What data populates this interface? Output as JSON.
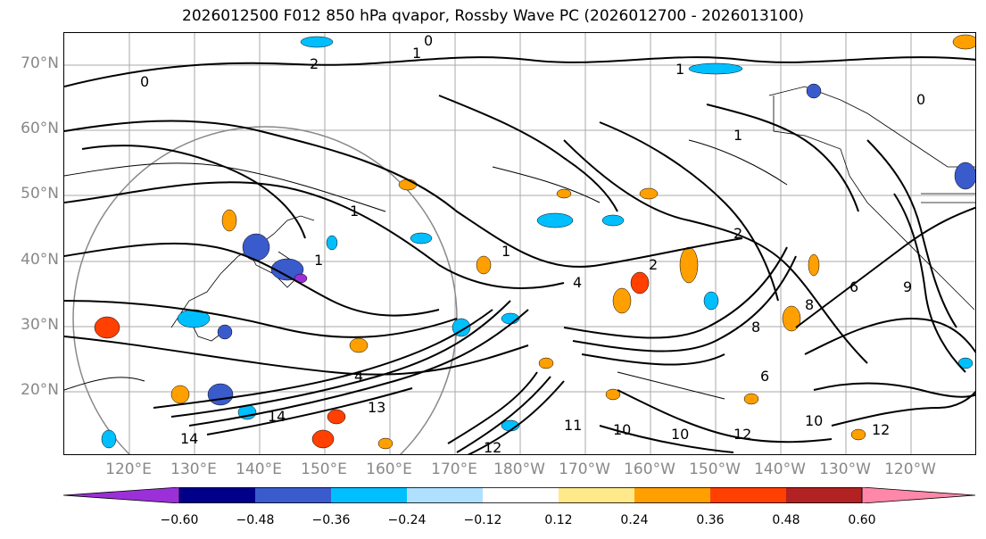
{
  "title": "2026012500 F012 850 hPa qvapor, Rossby Wave PC (2026012700 - 2026013100)",
  "lat_labels": [
    "70°N",
    "60°N",
    "50°N",
    "40°N",
    "30°N",
    "20°N"
  ],
  "lon_labels": [
    "120°E",
    "130°E",
    "140°E",
    "150°E",
    "160°E",
    "170°E",
    "180°W",
    "170°W",
    "160°W",
    "150°W",
    "140°W",
    "130°W",
    "120°W"
  ],
  "colorbar": {
    "colors": [
      "#9b30d9",
      "#00008b",
      "#3a5bcc",
      "#00bfff",
      "#b0e0ff",
      "#ffffff",
      "#ffe98a",
      "#ffa000",
      "#ff4000",
      "#b22222",
      "#ff88aa"
    ],
    "ticks": [
      "−0.60",
      "−0.48",
      "−0.36",
      "−0.24",
      "−0.12",
      "0.12",
      "0.24",
      "0.36",
      "0.48",
      "0.60"
    ]
  },
  "contour_labels": [
    "0",
    "1",
    "2",
    "1",
    "0",
    "1",
    "1",
    "2",
    "1",
    "2",
    "4",
    "4",
    "6",
    "8",
    "10",
    "11",
    "12",
    "13",
    "14",
    "14",
    "12",
    "10",
    "12",
    "6",
    "8",
    "9",
    "10",
    "1",
    "0"
  ]
}
